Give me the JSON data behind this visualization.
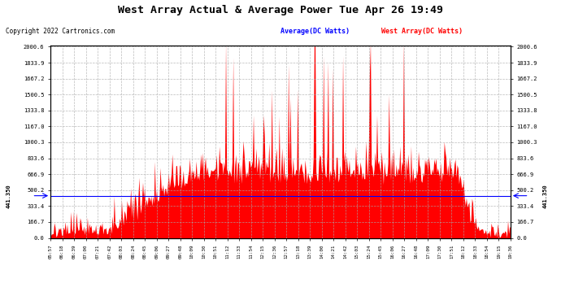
{
  "title": "West Array Actual & Average Power Tue Apr 26 19:49",
  "copyright": "Copyright 2022 Cartronics.com",
  "legend_blue": "Average(DC Watts)",
  "legend_red": "West Array(DC Watts)",
  "ymin": 0.0,
  "ymax": 2000.6,
  "yticks": [
    0.0,
    166.7,
    333.4,
    500.2,
    666.9,
    833.6,
    1000.3,
    1167.0,
    1333.8,
    1500.5,
    1667.2,
    1833.9,
    2000.6
  ],
  "yline": 441.35,
  "plot_bg": "#ffffff",
  "bar_color": "#ff0000",
  "avg_color": "#0000ff",
  "grid_color": "#aaaaaa",
  "title_color": "#000000",
  "n_points": 500,
  "x_tick_labels": [
    "05:57",
    "06:18",
    "06:39",
    "07:00",
    "07:21",
    "07:42",
    "08:03",
    "08:24",
    "08:45",
    "09:06",
    "09:27",
    "09:48",
    "10:09",
    "10:30",
    "10:51",
    "11:12",
    "11:33",
    "11:54",
    "12:15",
    "12:36",
    "12:57",
    "13:18",
    "13:39",
    "14:00",
    "14:21",
    "14:42",
    "15:03",
    "15:24",
    "15:45",
    "16:06",
    "16:27",
    "16:48",
    "17:09",
    "17:30",
    "17:51",
    "18:12",
    "18:33",
    "18:54",
    "19:15",
    "19:36"
  ]
}
